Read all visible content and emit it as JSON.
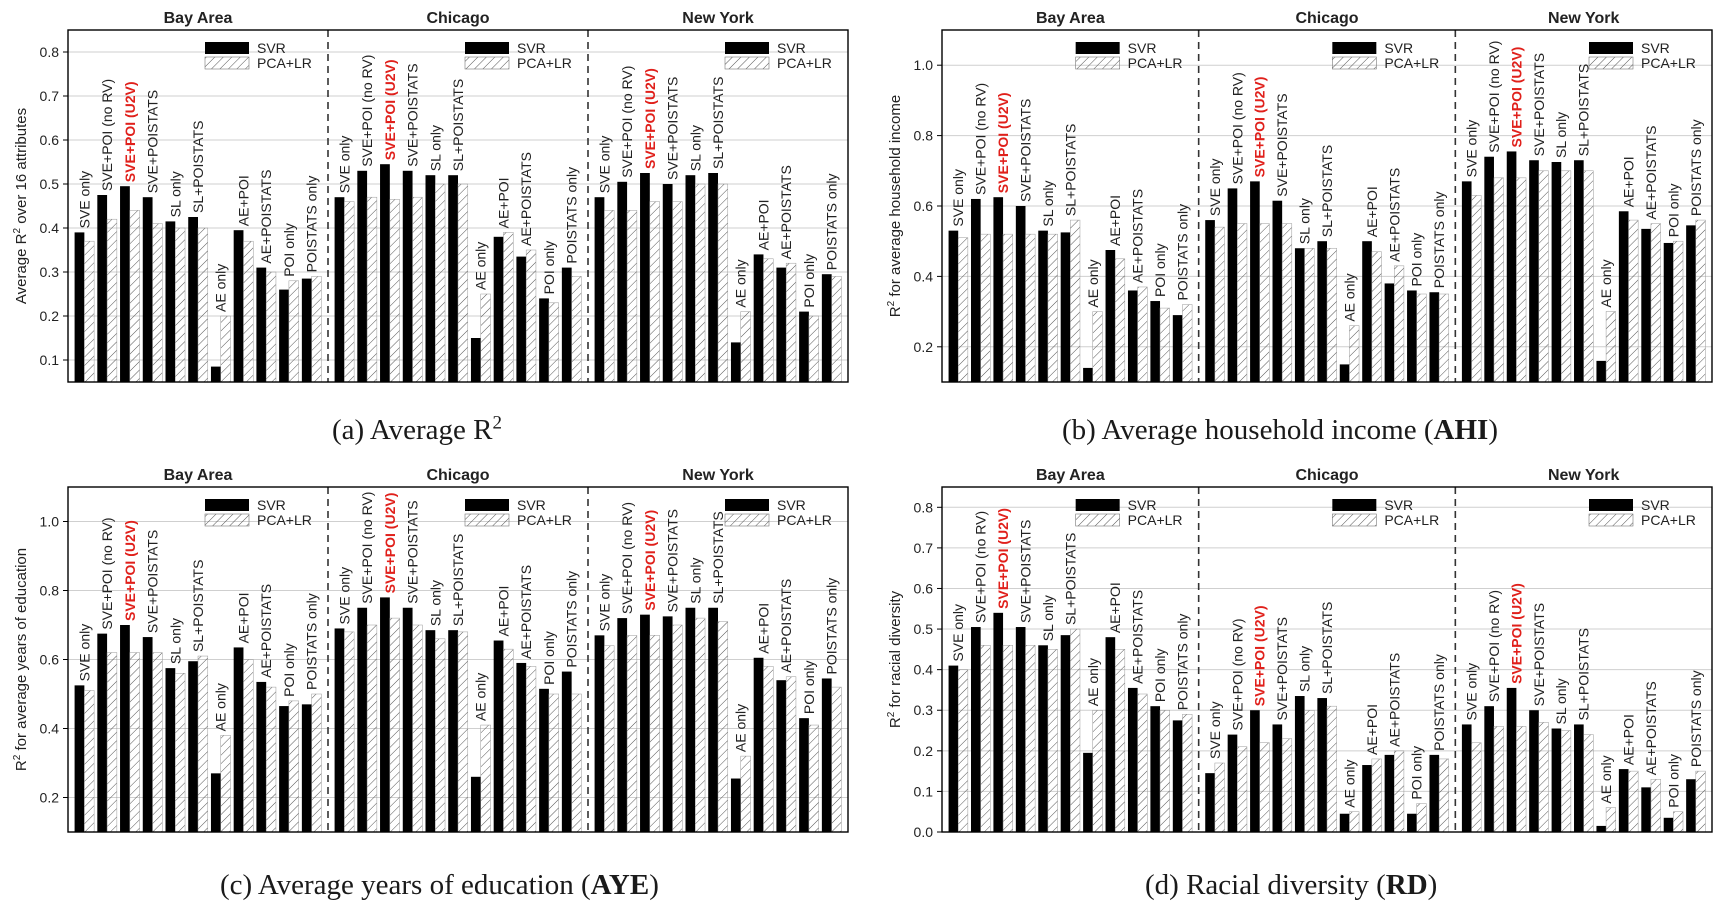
{
  "methods": [
    "SVE only",
    "SVE+POI (no RV)",
    "SVE+POI (U2V)",
    "SVE+POISTATS",
    "SL only",
    "SL+POISTATS",
    "AE only",
    "AE+POI",
    "AE+POISTATS",
    "POI only",
    "POISTATS only"
  ],
  "highlight_method": "SVE+POI (U2V)",
  "colors": {
    "svr": "#000000",
    "highlight": "#e0201b",
    "grid": "#cfcfcf",
    "divider": "#333333"
  },
  "chart_data": [
    {
      "type": "bar",
      "caption_prefix": "(a) Average R",
      "caption_sup": "2",
      "caption_bold": "",
      "caption_suffix": "",
      "ylabel_pre": "Average R",
      "ylabel_sup": "2",
      "ylabel_post": " over 16 attributes",
      "ylim": [
        0.05,
        0.85
      ],
      "yticks": [
        "0.1",
        "0.2",
        "0.3",
        "0.4",
        "0.5",
        "0.6",
        "0.7",
        "0.8"
      ],
      "grid": true,
      "legend": {
        "position": "top-right",
        "svr": "SVR",
        "pca": "PCA+LR"
      },
      "groups": [
        {
          "name": "Bay Area",
          "svr": [
            0.39,
            0.475,
            0.495,
            0.47,
            0.415,
            0.425,
            0.085,
            0.395,
            0.31,
            0.26,
            0.285
          ],
          "pca": [
            0.37,
            0.42,
            0.44,
            0.41,
            0.4,
            0.4,
            0.2,
            0.37,
            0.3,
            0.28,
            0.29
          ]
        },
        {
          "name": "Chicago",
          "svr": [
            0.47,
            0.53,
            0.545,
            0.53,
            0.52,
            0.52,
            0.15,
            0.38,
            0.335,
            0.24,
            0.31
          ],
          "pca": [
            0.46,
            0.47,
            0.465,
            0.47,
            0.5,
            0.5,
            0.25,
            0.39,
            0.35,
            0.23,
            0.29
          ]
        },
        {
          "name": "New York",
          "svr": [
            0.47,
            0.505,
            0.525,
            0.5,
            0.52,
            0.525,
            0.14,
            0.34,
            0.31,
            0.21,
            0.295
          ],
          "pca": [
            0.44,
            0.44,
            0.46,
            0.46,
            0.5,
            0.5,
            0.21,
            0.33,
            0.32,
            0.2,
            0.29
          ]
        }
      ]
    },
    {
      "type": "bar",
      "caption_prefix": "(b) Average household income (",
      "caption_sup": "",
      "caption_bold": "AHI",
      "caption_suffix": ")",
      "ylabel_pre": "R",
      "ylabel_sup": "2",
      "ylabel_post": " for average household income",
      "ylim": [
        0.1,
        1.1
      ],
      "yticks": [
        "0.2",
        "0.4",
        "0.6",
        "0.8",
        "1.0"
      ],
      "grid": true,
      "legend": {
        "position": "top-right",
        "svr": "SVR",
        "pca": "PCA+LR"
      },
      "groups": [
        {
          "name": "Bay Area",
          "svr": [
            0.53,
            0.62,
            0.625,
            0.6,
            0.53,
            0.525,
            0.14,
            0.475,
            0.36,
            0.33,
            0.29
          ],
          "pca": [
            0.51,
            0.52,
            0.52,
            0.52,
            0.52,
            0.56,
            0.3,
            0.45,
            0.37,
            0.31,
            0.32
          ]
        },
        {
          "name": "Chicago",
          "svr": [
            0.56,
            0.65,
            0.67,
            0.615,
            0.48,
            0.5,
            0.15,
            0.5,
            0.38,
            0.36,
            0.355
          ],
          "pca": [
            0.54,
            0.55,
            0.55,
            0.55,
            0.48,
            0.48,
            0.26,
            0.47,
            0.43,
            0.35,
            0.35
          ]
        },
        {
          "name": "New York",
          "svr": [
            0.67,
            0.74,
            0.755,
            0.73,
            0.725,
            0.73,
            0.16,
            0.585,
            0.535,
            0.495,
            0.545
          ],
          "pca": [
            0.63,
            0.68,
            0.68,
            0.7,
            0.7,
            0.7,
            0.3,
            0.56,
            0.55,
            0.5,
            0.56
          ]
        }
      ]
    },
    {
      "type": "bar",
      "caption_prefix": "(c) Average years of education (",
      "caption_sup": "",
      "caption_bold": "AYE",
      "caption_suffix": ")",
      "ylabel_pre": "R",
      "ylabel_sup": "2",
      "ylabel_post": " for average years of education",
      "ylim": [
        0.1,
        1.1
      ],
      "yticks": [
        "0.2",
        "0.4",
        "0.6",
        "0.8",
        "1.0"
      ],
      "grid": true,
      "legend": {
        "position": "top-right",
        "svr": "SVR",
        "pca": "PCA+LR"
      },
      "groups": [
        {
          "name": "Bay Area",
          "svr": [
            0.525,
            0.675,
            0.7,
            0.665,
            0.575,
            0.595,
            0.27,
            0.635,
            0.535,
            0.465,
            0.47
          ],
          "pca": [
            0.51,
            0.62,
            0.62,
            0.62,
            0.56,
            0.61,
            0.38,
            0.6,
            0.52,
            0.48,
            0.5
          ]
        },
        {
          "name": "Chicago",
          "svr": [
            0.69,
            0.75,
            0.78,
            0.75,
            0.685,
            0.685,
            0.26,
            0.655,
            0.59,
            0.515,
            0.565
          ],
          "pca": [
            0.68,
            0.7,
            0.72,
            0.7,
            0.66,
            0.68,
            0.41,
            0.63,
            0.58,
            0.5,
            0.5
          ]
        },
        {
          "name": "New York",
          "svr": [
            0.67,
            0.72,
            0.73,
            0.725,
            0.75,
            0.75,
            0.255,
            0.605,
            0.54,
            0.43,
            0.545
          ],
          "pca": [
            0.64,
            0.67,
            0.67,
            0.7,
            0.72,
            0.71,
            0.32,
            0.58,
            0.55,
            0.41,
            0.52
          ]
        }
      ]
    },
    {
      "type": "bar",
      "caption_prefix": "(d) Racial diversity (",
      "caption_sup": "",
      "caption_bold": "RD",
      "caption_suffix": ")",
      "ylabel_pre": "R",
      "ylabel_sup": "2",
      "ylabel_post": " for racial diversity",
      "ylim": [
        0.0,
        0.85
      ],
      "yticks": [
        "0.0",
        "0.1",
        "0.2",
        "0.3",
        "0.4",
        "0.5",
        "0.6",
        "0.7",
        "0.8"
      ],
      "grid": true,
      "legend": {
        "position": "top-right",
        "svr": "SVR",
        "pca": "PCA+LR"
      },
      "groups": [
        {
          "name": "Bay Area",
          "svr": [
            0.41,
            0.505,
            0.54,
            0.505,
            0.46,
            0.485,
            0.195,
            0.48,
            0.355,
            0.31,
            0.275
          ],
          "pca": [
            0.4,
            0.46,
            0.46,
            0.46,
            0.45,
            0.5,
            0.3,
            0.45,
            0.34,
            0.3,
            0.29
          ]
        },
        {
          "name": "Chicago",
          "svr": [
            0.145,
            0.24,
            0.3,
            0.265,
            0.335,
            0.33,
            0.045,
            0.165,
            0.19,
            0.045,
            0.19
          ],
          "pca": [
            0.17,
            0.21,
            0.22,
            0.23,
            0.3,
            0.31,
            0.05,
            0.18,
            0.2,
            0.07,
            0.18
          ]
        },
        {
          "name": "New York",
          "svr": [
            0.265,
            0.31,
            0.355,
            0.3,
            0.255,
            0.265,
            0.015,
            0.155,
            0.11,
            0.035,
            0.13
          ],
          "pca": [
            0.22,
            0.26,
            0.26,
            0.27,
            0.25,
            0.24,
            0.06,
            0.15,
            0.13,
            0.05,
            0.15
          ]
        }
      ]
    }
  ]
}
